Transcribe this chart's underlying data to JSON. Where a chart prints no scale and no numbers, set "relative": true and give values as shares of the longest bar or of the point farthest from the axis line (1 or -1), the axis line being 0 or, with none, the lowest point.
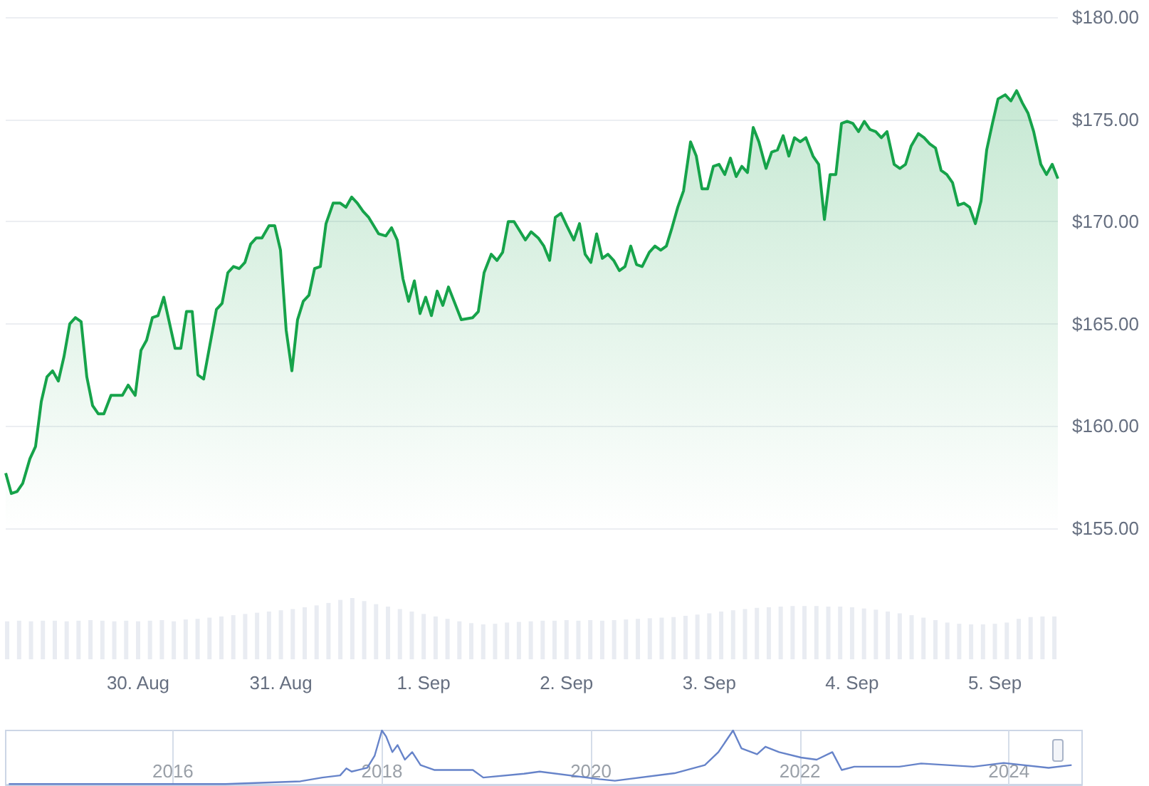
{
  "chart_data": [
    {
      "type": "area",
      "x": [
        "2024-08-29T01:45",
        "2024-08-29T02:42",
        "2024-08-29T03:40",
        "2024-08-29T04:37",
        "2024-08-29T05:49",
        "2024-08-29T06:46",
        "2024-08-29T07:44",
        "2024-08-29T08:41",
        "2024-08-29T09:38",
        "2024-08-29T10:36",
        "2024-08-29T11:33",
        "2024-08-29T12:31",
        "2024-08-29T13:28",
        "2024-08-29T14:26",
        "2024-08-29T15:23",
        "2024-08-29T16:21",
        "2024-08-29T17:18",
        "2024-08-29T18:15",
        "2024-08-29T19:27",
        "2024-08-29T21:22",
        "2024-08-29T22:20",
        "2024-08-29T23:31",
        "2024-08-30T00:29",
        "2024-08-30T01:26",
        "2024-08-30T02:24",
        "2024-08-30T03:21",
        "2024-08-30T04:19",
        "2024-08-30T06:13",
        "2024-08-30T07:11",
        "2024-08-30T08:08",
        "2024-08-30T09:06",
        "2024-08-30T10:03",
        "2024-08-30T11:01",
        "2024-08-30T13:10",
        "2024-08-30T14:07",
        "2024-08-30T15:05",
        "2024-08-30T16:02",
        "2024-08-30T17:00",
        "2024-08-30T17:57",
        "2024-08-30T18:55",
        "2024-08-30T19:52",
        "2024-08-30T20:49",
        "2024-08-30T22:01",
        "2024-08-30T22:58",
        "2024-08-30T23:56",
        "2024-08-31T00:53",
        "2024-08-31T01:51",
        "2024-08-31T02:48",
        "2024-08-31T03:46",
        "2024-08-31T04:43",
        "2024-08-31T05:40",
        "2024-08-31T06:38",
        "2024-08-31T07:35",
        "2024-08-31T08:47",
        "2024-08-31T09:59",
        "2024-08-31T10:56",
        "2024-08-31T11:54",
        "2024-08-31T12:51",
        "2024-08-31T13:49",
        "2024-08-31T14:46",
        "2024-08-31T16:26",
        "2024-08-31T17:38",
        "2024-08-31T18:36",
        "2024-08-31T19:33",
        "2024-08-31T20:31",
        "2024-08-31T21:28",
        "2024-08-31T22:26",
        "2024-08-31T23:23",
        "2024-09-01T00:20",
        "2024-09-01T01:18",
        "2024-09-01T02:16",
        "2024-09-01T03:13",
        "2024-09-01T04:10",
        "2024-09-01T06:19",
        "2024-09-01T08:14",
        "2024-09-01T09:11",
        "2024-09-01T10:09",
        "2024-09-01T11:21",
        "2024-09-01T12:19",
        "2024-09-01T13:16",
        "2024-09-01T14:13",
        "2024-09-01T15:11",
        "2024-09-01T17:05",
        "2024-09-01T18:03",
        "2024-09-01T19:15",
        "2024-09-01T20:12",
        "2024-09-01T21:10",
        "2024-09-01T22:07",
        "2024-09-01T23:04",
        "2024-09-02T00:02",
        "2024-09-02T01:14",
        "2024-09-02T02:11",
        "2024-09-02T03:08",
        "2024-09-02T04:06",
        "2024-09-02T05:04",
        "2024-09-02T06:01",
        "2024-09-02T06:58",
        "2024-09-02T07:56",
        "2024-09-02T08:53",
        "2024-09-02T09:50",
        "2024-09-02T10:48",
        "2024-09-02T11:46",
        "2024-09-02T12:43",
        "2024-09-02T13:55",
        "2024-09-02T14:52",
        "2024-09-02T15:50",
        "2024-09-02T16:47",
        "2024-09-02T17:44",
        "2024-09-02T18:42",
        "2024-09-02T19:40",
        "2024-09-02T20:51",
        "2024-09-02T21:49",
        "2024-09-02T22:46",
        "2024-09-02T23:43",
        "2024-09-03T00:41",
        "2024-09-03T01:38",
        "2024-09-03T02:36",
        "2024-09-03T03:33",
        "2024-09-03T04:31",
        "2024-09-03T05:28",
        "2024-09-03T06:25",
        "2024-09-03T07:23",
        "2024-09-03T08:20",
        "2024-09-03T09:32",
        "2024-09-03T10:29",
        "2024-09-03T11:27",
        "2024-09-03T12:25",
        "2024-09-03T13:22",
        "2024-09-03T14:19",
        "2024-09-03T15:17",
        "2024-09-03T16:14",
        "2024-09-03T17:26",
        "2024-09-03T18:23",
        "2024-09-03T19:21",
        "2024-09-03T20:18",
        "2024-09-03T21:16",
        "2024-09-03T22:13",
        "2024-09-03T23:10",
        "2024-09-04T00:08",
        "2024-09-04T01:05",
        "2024-09-04T02:03",
        "2024-09-04T03:00",
        "2024-09-04T03:58",
        "2024-09-04T04:55",
        "2024-09-04T05:52",
        "2024-09-04T07:04",
        "2024-09-04T08:02",
        "2024-09-04T08:59",
        "2024-09-04T09:56",
        "2024-09-04T11:08",
        "2024-09-04T12:06",
        "2024-09-04T13:03",
        "2024-09-04T14:01",
        "2024-09-04T14:58",
        "2024-09-04T15:55",
        "2024-09-04T16:53",
        "2024-09-04T17:50",
        "2024-09-04T18:48",
        "2024-09-04T19:45",
        "2024-09-04T20:43",
        "2024-09-04T21:40",
        "2024-09-04T22:37",
        "2024-09-04T23:35",
        "2024-09-05T00:32",
        "2024-09-05T01:44",
        "2024-09-05T02:41",
        "2024-09-05T03:39",
        "2024-09-05T04:37",
        "2024-09-05T05:34",
        "2024-09-05T06:31",
        "2024-09-05T07:43",
        "2024-09-05T08:40",
        "2024-09-05T09:38",
        "2024-09-05T10:35"
      ],
      "series": [
        {
          "color": "#16a34a",
          "values": [
            157.7,
            156.7,
            156.8,
            157.2,
            158.4,
            159.0,
            161.2,
            162.4,
            162.7,
            162.2,
            163.4,
            165.0,
            165.3,
            165.1,
            162.4,
            161.0,
            160.6,
            160.6,
            161.5,
            161.5,
            162.0,
            161.5,
            163.7,
            164.2,
            165.3,
            165.4,
            166.3,
            163.8,
            163.8,
            165.6,
            165.6,
            162.5,
            162.3,
            165.7,
            166.0,
            167.5,
            167.8,
            167.7,
            168.0,
            168.9,
            169.2,
            169.2,
            169.8,
            169.8,
            168.6,
            164.7,
            162.7,
            165.2,
            166.1,
            166.4,
            167.7,
            167.8,
            169.9,
            170.9,
            170.9,
            170.7,
            171.2,
            170.9,
            170.5,
            170.2,
            169.4,
            169.3,
            169.7,
            169.1,
            167.2,
            166.1,
            167.1,
            165.5,
            166.3,
            165.4,
            166.6,
            165.9,
            166.8,
            165.2,
            165.3,
            165.6,
            167.5,
            168.4,
            168.1,
            168.5,
            170.0,
            170.0,
            169.1,
            169.5,
            169.2,
            168.8,
            168.1,
            170.2,
            170.4,
            169.8,
            169.1,
            169.9,
            168.4,
            168.0,
            169.4,
            168.2,
            168.4,
            168.1,
            167.6,
            167.8,
            168.8,
            167.9,
            167.8,
            168.5,
            168.8,
            168.6,
            168.8,
            169.7,
            170.7,
            171.5,
            173.9,
            173.2,
            171.6,
            171.6,
            172.7,
            172.8,
            172.3,
            173.1,
            172.2,
            172.7,
            172.4,
            174.6,
            173.9,
            172.6,
            173.4,
            173.5,
            174.2,
            173.2,
            174.1,
            173.9,
            174.1,
            173.2,
            172.8,
            170.1,
            172.3,
            172.3,
            174.8,
            174.9,
            174.8,
            174.4,
            174.9,
            174.5,
            174.4,
            174.1,
            174.4,
            172.8,
            172.6,
            172.8,
            173.7,
            174.3,
            174.1,
            173.8,
            173.6,
            172.5,
            172.3,
            171.9,
            170.8,
            170.9,
            170.7,
            169.9,
            171.0,
            173.5,
            174.8,
            176.0,
            176.2,
            175.9,
            176.4,
            175.8,
            175.3,
            174.4,
            172.8,
            172.3,
            172.8,
            172.1
          ]
        }
      ],
      "xlim": [
        "2024-08-29T01:45",
        "2024-09-05T10:35"
      ],
      "ylim": [
        155,
        180
      ],
      "yticks": [
        {
          "value": 155,
          "label": "$155.00"
        },
        {
          "value": 160,
          "label": "$160.00"
        },
        {
          "value": 165,
          "label": "$165.00"
        },
        {
          "value": 170,
          "label": "$170.00"
        },
        {
          "value": 175,
          "label": "$175.00"
        },
        {
          "value": 180,
          "label": "$180.00"
        }
      ],
      "tick_labels": "y",
      "grid": "y",
      "marker": "none",
      "line_style": "solid"
    },
    {
      "type": "bar",
      "relative": true,
      "x": [
        "2024-08-29T02:00",
        "2024-08-29T04:00",
        "2024-08-29T06:00",
        "2024-08-29T08:00",
        "2024-08-29T10:00",
        "2024-08-29T12:00",
        "2024-08-29T14:00",
        "2024-08-29T16:00",
        "2024-08-29T18:00",
        "2024-08-29T20:00",
        "2024-08-29T22:00",
        "2024-08-30T00:00",
        "2024-08-30T02:00",
        "2024-08-30T04:00",
        "2024-08-30T06:00",
        "2024-08-30T08:00",
        "2024-08-30T10:00",
        "2024-08-30T12:00",
        "2024-08-30T14:00",
        "2024-08-30T16:00",
        "2024-08-30T18:00",
        "2024-08-30T20:00",
        "2024-08-30T22:00",
        "2024-08-31T00:00",
        "2024-08-31T02:00",
        "2024-08-31T04:00",
        "2024-08-31T06:00",
        "2024-08-31T08:00",
        "2024-08-31T10:00",
        "2024-08-31T12:00",
        "2024-08-31T14:00",
        "2024-08-31T16:00",
        "2024-08-31T18:00",
        "2024-08-31T20:00",
        "2024-08-31T22:00",
        "2024-09-01T00:00",
        "2024-09-01T02:00",
        "2024-09-01T04:00",
        "2024-09-01T06:00",
        "2024-09-01T08:00",
        "2024-09-01T10:00",
        "2024-09-01T12:00",
        "2024-09-01T14:00",
        "2024-09-01T16:00",
        "2024-09-01T18:00",
        "2024-09-01T20:00",
        "2024-09-01T22:00",
        "2024-09-02T00:00",
        "2024-09-02T02:00",
        "2024-09-02T04:00",
        "2024-09-02T06:00",
        "2024-09-02T08:00",
        "2024-09-02T10:00",
        "2024-09-02T12:00",
        "2024-09-02T14:00",
        "2024-09-02T16:00",
        "2024-09-02T18:00",
        "2024-09-02T20:00",
        "2024-09-02T22:00",
        "2024-09-03T00:00",
        "2024-09-03T02:00",
        "2024-09-03T04:00",
        "2024-09-03T06:00",
        "2024-09-03T08:00",
        "2024-09-03T10:00",
        "2024-09-03T12:00",
        "2024-09-03T14:00",
        "2024-09-03T16:00",
        "2024-09-03T18:00",
        "2024-09-03T20:00",
        "2024-09-03T22:00",
        "2024-09-04T00:00",
        "2024-09-04T02:00",
        "2024-09-04T04:00",
        "2024-09-04T06:00",
        "2024-09-04T08:00",
        "2024-09-04T10:00",
        "2024-09-04T12:00",
        "2024-09-04T14:00",
        "2024-09-04T16:00",
        "2024-09-04T18:00",
        "2024-09-04T20:00",
        "2024-09-04T22:00",
        "2024-09-05T00:00",
        "2024-09-05T02:00",
        "2024-09-05T04:00",
        "2024-09-05T06:00",
        "2024-09-05T08:00",
        "2024-09-05T10:00"
      ],
      "series": [
        {
          "color": "#e9ecf2",
          "values": [
            0.62,
            0.63,
            0.62,
            0.63,
            0.63,
            0.62,
            0.63,
            0.64,
            0.63,
            0.62,
            0.63,
            0.62,
            0.63,
            0.64,
            0.62,
            0.65,
            0.66,
            0.68,
            0.7,
            0.72,
            0.74,
            0.76,
            0.78,
            0.8,
            0.82,
            0.85,
            0.88,
            0.92,
            0.97,
            1.0,
            0.95,
            0.9,
            0.86,
            0.82,
            0.78,
            0.74,
            0.7,
            0.66,
            0.62,
            0.59,
            0.57,
            0.58,
            0.6,
            0.61,
            0.62,
            0.63,
            0.63,
            0.64,
            0.63,
            0.64,
            0.63,
            0.64,
            0.65,
            0.66,
            0.67,
            0.68,
            0.69,
            0.71,
            0.73,
            0.75,
            0.78,
            0.8,
            0.82,
            0.84,
            0.85,
            0.86,
            0.87,
            0.87,
            0.87,
            0.86,
            0.86,
            0.85,
            0.83,
            0.81,
            0.78,
            0.75,
            0.72,
            0.68,
            0.64,
            0.6,
            0.58,
            0.57,
            0.57,
            0.58,
            0.6,
            0.66,
            0.69,
            0.7,
            0.7
          ]
        }
      ],
      "xlim": [
        "2024-08-29T01:45",
        "2024-09-05T10:35"
      ],
      "xticks": [
        {
          "value": "2024-08-30",
          "label": "30. Aug"
        },
        {
          "value": "2024-08-31",
          "label": "31. Aug"
        },
        {
          "value": "2024-09-01",
          "label": "1. Sep"
        },
        {
          "value": "2024-09-02",
          "label": "2. Sep"
        },
        {
          "value": "2024-09-03",
          "label": "3. Sep"
        },
        {
          "value": "2024-09-04",
          "label": "4. Sep"
        },
        {
          "value": "2024-09-05",
          "label": "5. Sep"
        }
      ],
      "tick_labels": "x",
      "grid": false
    },
    {
      "type": "line",
      "relative": true,
      "x": [
        2014.43,
        2016.5,
        2017.22,
        2017.43,
        2017.6,
        2017.66,
        2017.71,
        2017.86,
        2017.93,
        2018.0,
        2018.04,
        2018.1,
        2018.15,
        2018.22,
        2018.29,
        2018.37,
        2018.5,
        2018.87,
        2018.97,
        2019.36,
        2019.51,
        2020.08,
        2020.23,
        2020.8,
        2021.09,
        2021.22,
        2021.36,
        2021.44,
        2021.59,
        2021.67,
        2021.8,
        2022.01,
        2022.16,
        2022.31,
        2022.4,
        2022.52,
        2022.95,
        2023.16,
        2023.66,
        2023.95,
        2024.38,
        2024.6
      ],
      "series": [
        {
          "color": "#6683c9",
          "values": [
            0.01,
            0.01,
            0.06,
            0.13,
            0.17,
            0.3,
            0.24,
            0.31,
            0.53,
            1.0,
            0.89,
            0.6,
            0.73,
            0.46,
            0.6,
            0.36,
            0.27,
            0.27,
            0.13,
            0.2,
            0.24,
            0.1,
            0.07,
            0.21,
            0.36,
            0.6,
            1.0,
            0.67,
            0.56,
            0.7,
            0.6,
            0.5,
            0.46,
            0.6,
            0.27,
            0.33,
            0.33,
            0.39,
            0.33,
            0.4,
            0.31,
            0.36
          ]
        }
      ],
      "xlim": [
        2014.4,
        2024.7
      ],
      "xticks": [
        2016,
        2018,
        2020,
        2022,
        2024
      ],
      "tick_labels": "x",
      "grid": "x",
      "marker": "none",
      "line_style": "solid"
    }
  ]
}
